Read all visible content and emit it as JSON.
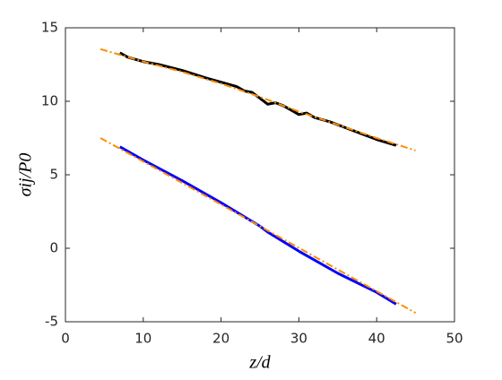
{
  "chart_data": {
    "type": "line",
    "xlabel": "z/d",
    "ylabel": "σij/P0",
    "xlim": [
      0,
      50
    ],
    "xticks": [
      0,
      10,
      20,
      30,
      40,
      50
    ],
    "ylim": [
      -5,
      15
    ],
    "yticks": [
      -5,
      0,
      5,
      10,
      15
    ],
    "grid": false,
    "series": [
      {
        "color": "#000000",
        "width": 3,
        "dash": "none",
        "x": [
          7,
          8,
          10,
          12,
          15,
          18,
          20,
          22,
          23,
          24,
          25,
          26,
          27,
          28,
          29,
          30,
          31,
          32,
          34,
          36,
          38,
          40,
          42.5
        ],
        "values": [
          13.3,
          13.0,
          12.7,
          12.5,
          12.1,
          11.6,
          11.3,
          11.0,
          10.7,
          10.6,
          10.2,
          9.8,
          9.9,
          9.7,
          9.4,
          9.1,
          9.2,
          8.9,
          8.6,
          8.2,
          7.8,
          7.4,
          7.0
        ]
      },
      {
        "color": "#0000ff",
        "width": 3,
        "dash": "none",
        "x": [
          7,
          10,
          15,
          20,
          25,
          26,
          30,
          35,
          40,
          42.5
        ],
        "values": [
          6.9,
          6.0,
          4.6,
          3.1,
          1.5,
          1.1,
          -0.2,
          -1.7,
          -3.0,
          -3.8
        ]
      },
      {
        "color": "#ff8c00",
        "width": 2,
        "dash": "8 3 2 3",
        "x": [
          4.5,
          10,
          15,
          20,
          25,
          30,
          35,
          40,
          45
        ],
        "values": [
          13.55,
          12.7,
          12.0,
          11.2,
          10.3,
          9.3,
          8.4,
          7.5,
          6.65
        ]
      },
      {
        "color": "#ff8c00",
        "width": 2,
        "dash": "8 3 2 3",
        "x": [
          4.5,
          15,
          25,
          35,
          45
        ],
        "values": [
          7.5,
          4.45,
          1.5,
          -1.45,
          -4.4
        ]
      }
    ]
  }
}
